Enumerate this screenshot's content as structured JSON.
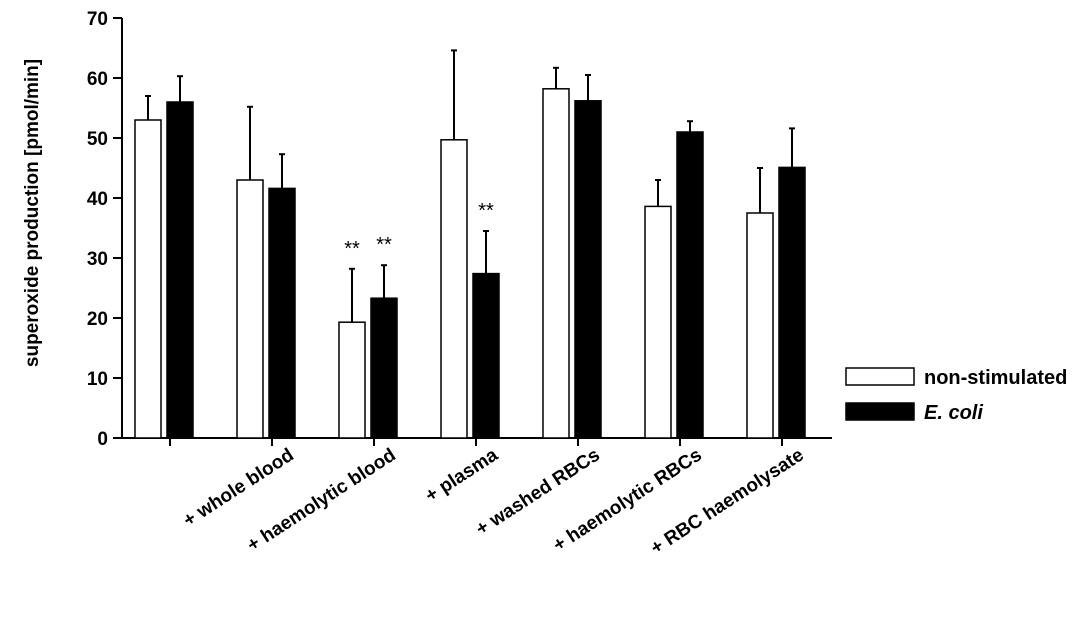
{
  "chart_data": {
    "type": "bar",
    "ylabel": "superoxide production [pmol/min]",
    "xlabel": "",
    "ylim": [
      0,
      70
    ],
    "yticks": [
      0,
      10,
      20,
      30,
      40,
      50,
      60,
      70
    ],
    "categories": [
      "",
      "+ whole blood",
      "+ haemolytic blood",
      "+ plasma",
      "+ washed RBCs",
      "+ haemolytic RBCs",
      "+ RBC haemolysate"
    ],
    "series": [
      {
        "name": "non-stimulated",
        "color": "#ffffff",
        "values": [
          53,
          43,
          19.3,
          49.7,
          58.2,
          38.6,
          37.5
        ],
        "error_upper": [
          57,
          55.2,
          28.2,
          64.6,
          61.7,
          43,
          45
        ]
      },
      {
        "name": "E. coli",
        "color": "#000000",
        "values": [
          56,
          41.6,
          23.3,
          27.4,
          56.2,
          51,
          45.1
        ],
        "error_upper": [
          60.3,
          47.3,
          28.8,
          34.5,
          60.5,
          52.8,
          51.6
        ]
      }
    ],
    "annotations": [
      {
        "text": "**",
        "category": 2,
        "series": 0
      },
      {
        "text": "**",
        "category": 2,
        "series": 1
      },
      {
        "text": "**",
        "category": 3,
        "series": 1
      }
    ],
    "legend": {
      "placement": "right",
      "items": [
        "non-stimulated",
        "E. coli"
      ]
    },
    "grid": false
  }
}
